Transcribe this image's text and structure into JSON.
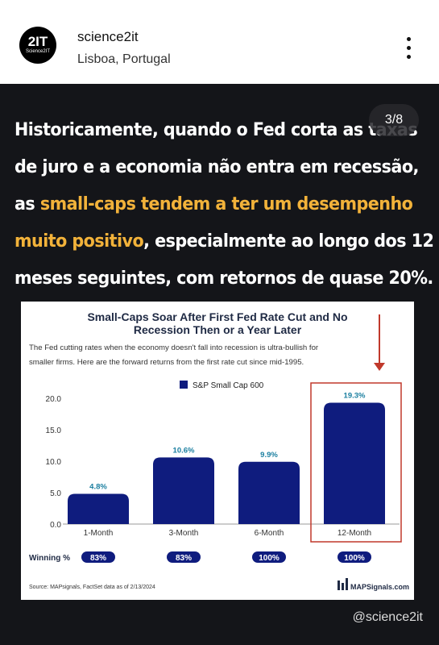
{
  "account": {
    "avatar_text_big": "2IT",
    "avatar_text_small": "Science2IT",
    "name": "science2it",
    "location": "Lisboa, Portugal"
  },
  "menu_icon": "more-vertical-icon",
  "pager": "3/8",
  "headline": {
    "line1": "Historicamente, quando o Fed corta as taxas",
    "line2": "de juro e a economia não entra em recessão,",
    "line3_plain": "as ",
    "line3_hl": "small-caps tendem a ter um desempenho",
    "line4_hl": "muito positivo",
    "line4_plain": ", especialmente ao longo dos 12",
    "line5": "meses seguintes, com retornos de quase 20%.",
    "highlight_color": "#f2b23a"
  },
  "handle": "@science2it",
  "chart_data": {
    "type": "bar",
    "title_line1": "Small-Caps Soar After First Fed Rate Cut and No",
    "title_line2": "Recession Then or a Year Later",
    "subtitle_line1": "The Fed cutting rates when the economy doesn't fall into recession is ultra-bullish for",
    "subtitle_line2": "smaller firms. Here are the forward returns from the first rate cut since mid-1995.",
    "legend": "S&P Small Cap 600",
    "categories": [
      "1-Month",
      "3-Month",
      "6-Month",
      "12-Month"
    ],
    "values": [
      4.8,
      10.6,
      9.9,
      19.3
    ],
    "value_labels": [
      "4.8%",
      "10.6%",
      "9.9%",
      "19.3%"
    ],
    "ylim": [
      0,
      20
    ],
    "yticks": [
      "0.0",
      "5.0",
      "10.0",
      "15.0",
      "20.0"
    ],
    "bar_color": "#0f1c7e",
    "highlight_color": "#c0392b",
    "winning_label": "Winning %",
    "winning": [
      "83%",
      "83%",
      "100%",
      "100%"
    ],
    "source": "Source: MAPsignals, FactSet data as of 2/13/2024",
    "brand": "MAPSignals.com"
  }
}
